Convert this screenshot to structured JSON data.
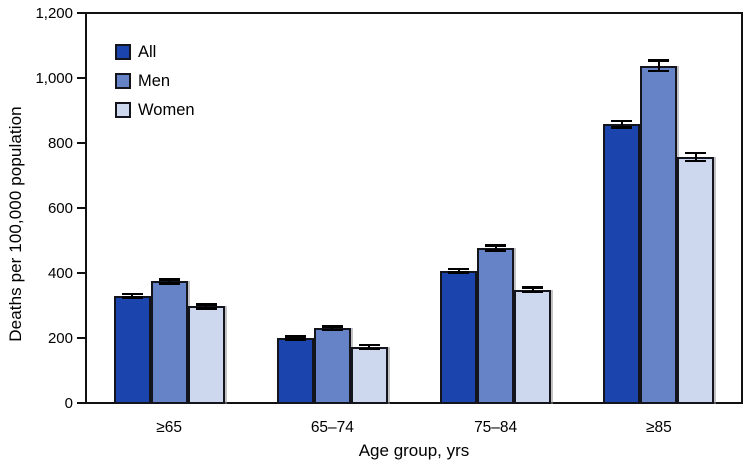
{
  "chart_data": {
    "type": "bar",
    "title": "",
    "xlabel": "Age group, yrs",
    "ylabel": "Deaths per 100,000 population",
    "categories": [
      "≥65",
      "65–74",
      "75–84",
      "≥85"
    ],
    "series": [
      {
        "name": "All",
        "color": "#1b45ac",
        "values": [
          330,
          200,
          407,
          858
        ],
        "error_ci": [
          5,
          5,
          5,
          10
        ]
      },
      {
        "name": "Men",
        "color": "#6683c8",
        "values": [
          374,
          230,
          477,
          1038
        ],
        "error_ci": [
          6,
          6,
          7,
          16
        ]
      },
      {
        "name": "Women",
        "color": "#cdd7ee",
        "values": [
          297,
          172,
          348,
          757
        ],
        "error_ci": [
          6,
          6,
          7,
          12
        ]
      }
    ],
    "ylim": [
      0,
      1200
    ],
    "ytick_step": 200,
    "ytick_labels": [
      "0",
      "200",
      "400",
      "600",
      "800",
      "1,000",
      "1,200"
    ],
    "grid": false,
    "error_bars": true,
    "legend": {
      "position": "top-left",
      "entries": [
        "All",
        "Men",
        "Women"
      ]
    }
  },
  "style": {
    "frame_color": "#111111",
    "bar_border_color": "#14141c",
    "error_bar_color": "#000000",
    "background": "#ffffff"
  }
}
